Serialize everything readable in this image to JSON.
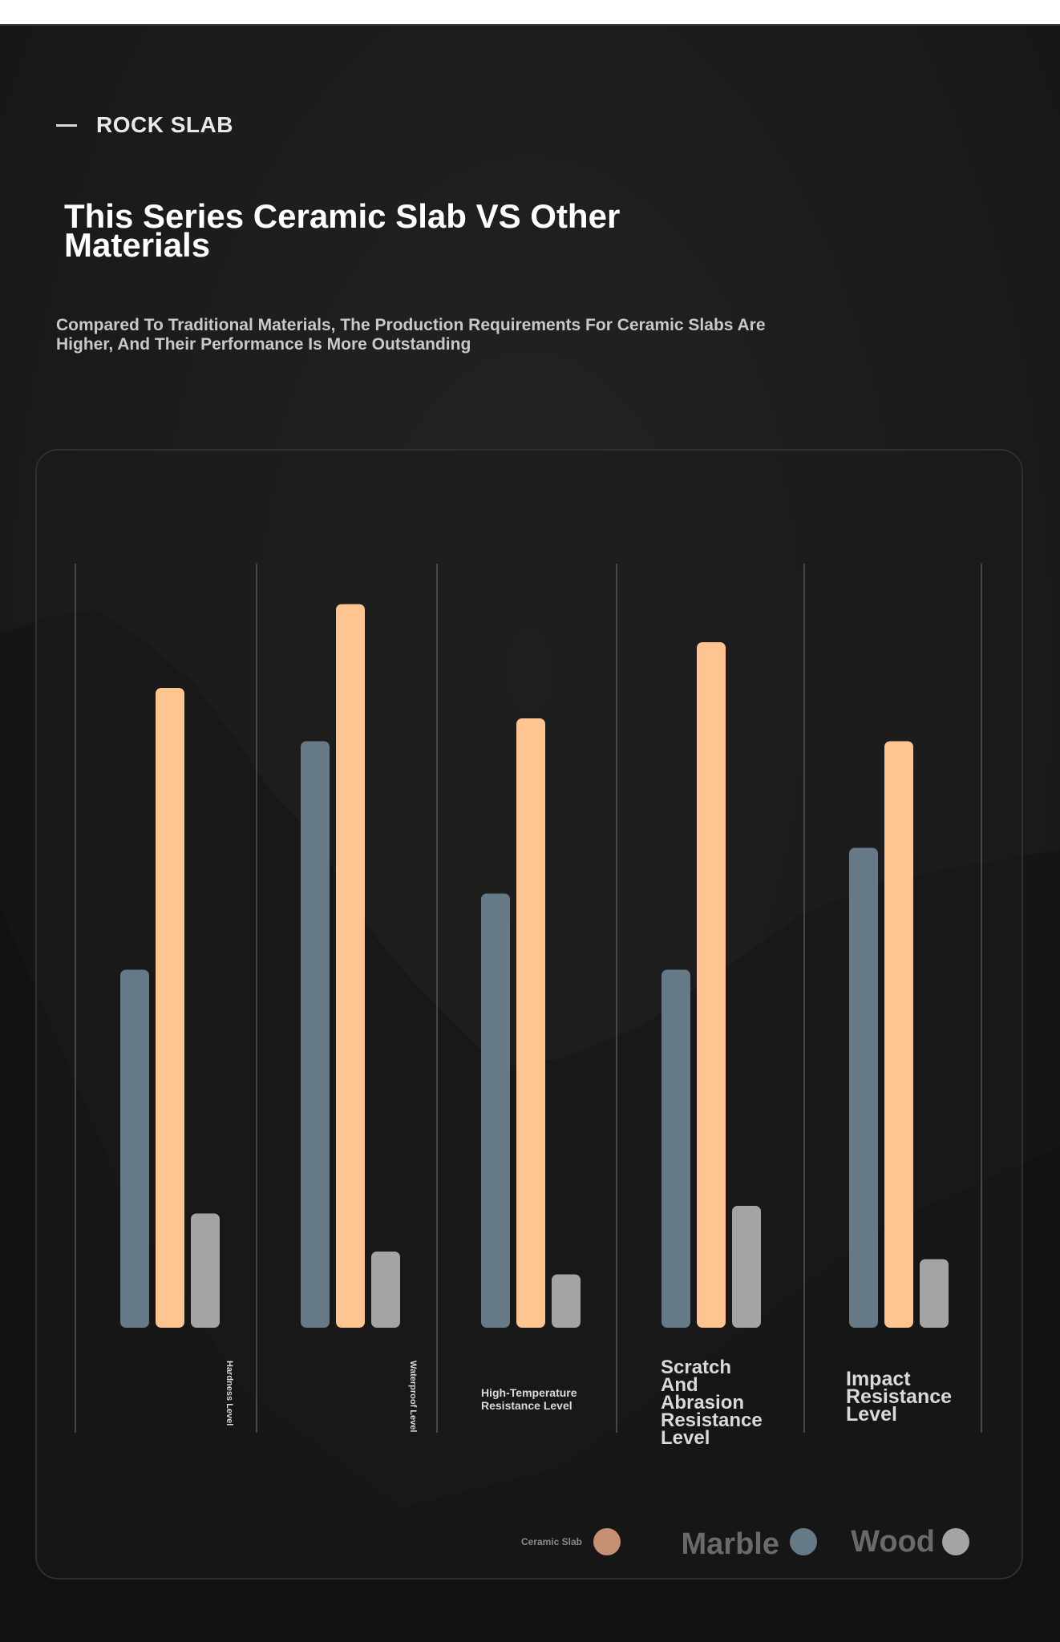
{
  "brand": {
    "name": "ROCK SLAB"
  },
  "heading": {
    "title_line1": "This Series Ceramic Slab VS Other",
    "title_line2": "Materials",
    "subtitle_line1": "Compared To Traditional Materials, The Production Requirements For Ceramic Slabs Are",
    "subtitle_line2": "Higher, And Their Performance Is More Outstanding"
  },
  "colors": {
    "ceramic_slab": "#fec590",
    "marble": "#667986",
    "wood": "#a4a4a4",
    "ceramic_slab_legend": "#c59172"
  },
  "chart_data": {
    "type": "bar",
    "categories": [
      "Hardness Level",
      "Waterproof Level",
      "High-Temperature Resistance Level",
      "Scratch And Abrasion Resistance Level",
      "Impact Resistance Level"
    ],
    "series": [
      {
        "name": "Marble",
        "values": [
          47,
          77,
          57,
          47,
          63
        ]
      },
      {
        "name": "Ceramic Slab",
        "values": [
          84,
          95,
          80,
          90,
          77
        ]
      },
      {
        "name": "Wood",
        "values": [
          15,
          10,
          7,
          16,
          9
        ]
      }
    ],
    "ylim": [
      0,
      100
    ],
    "grid": false,
    "legend": "bottom-right"
  }
}
